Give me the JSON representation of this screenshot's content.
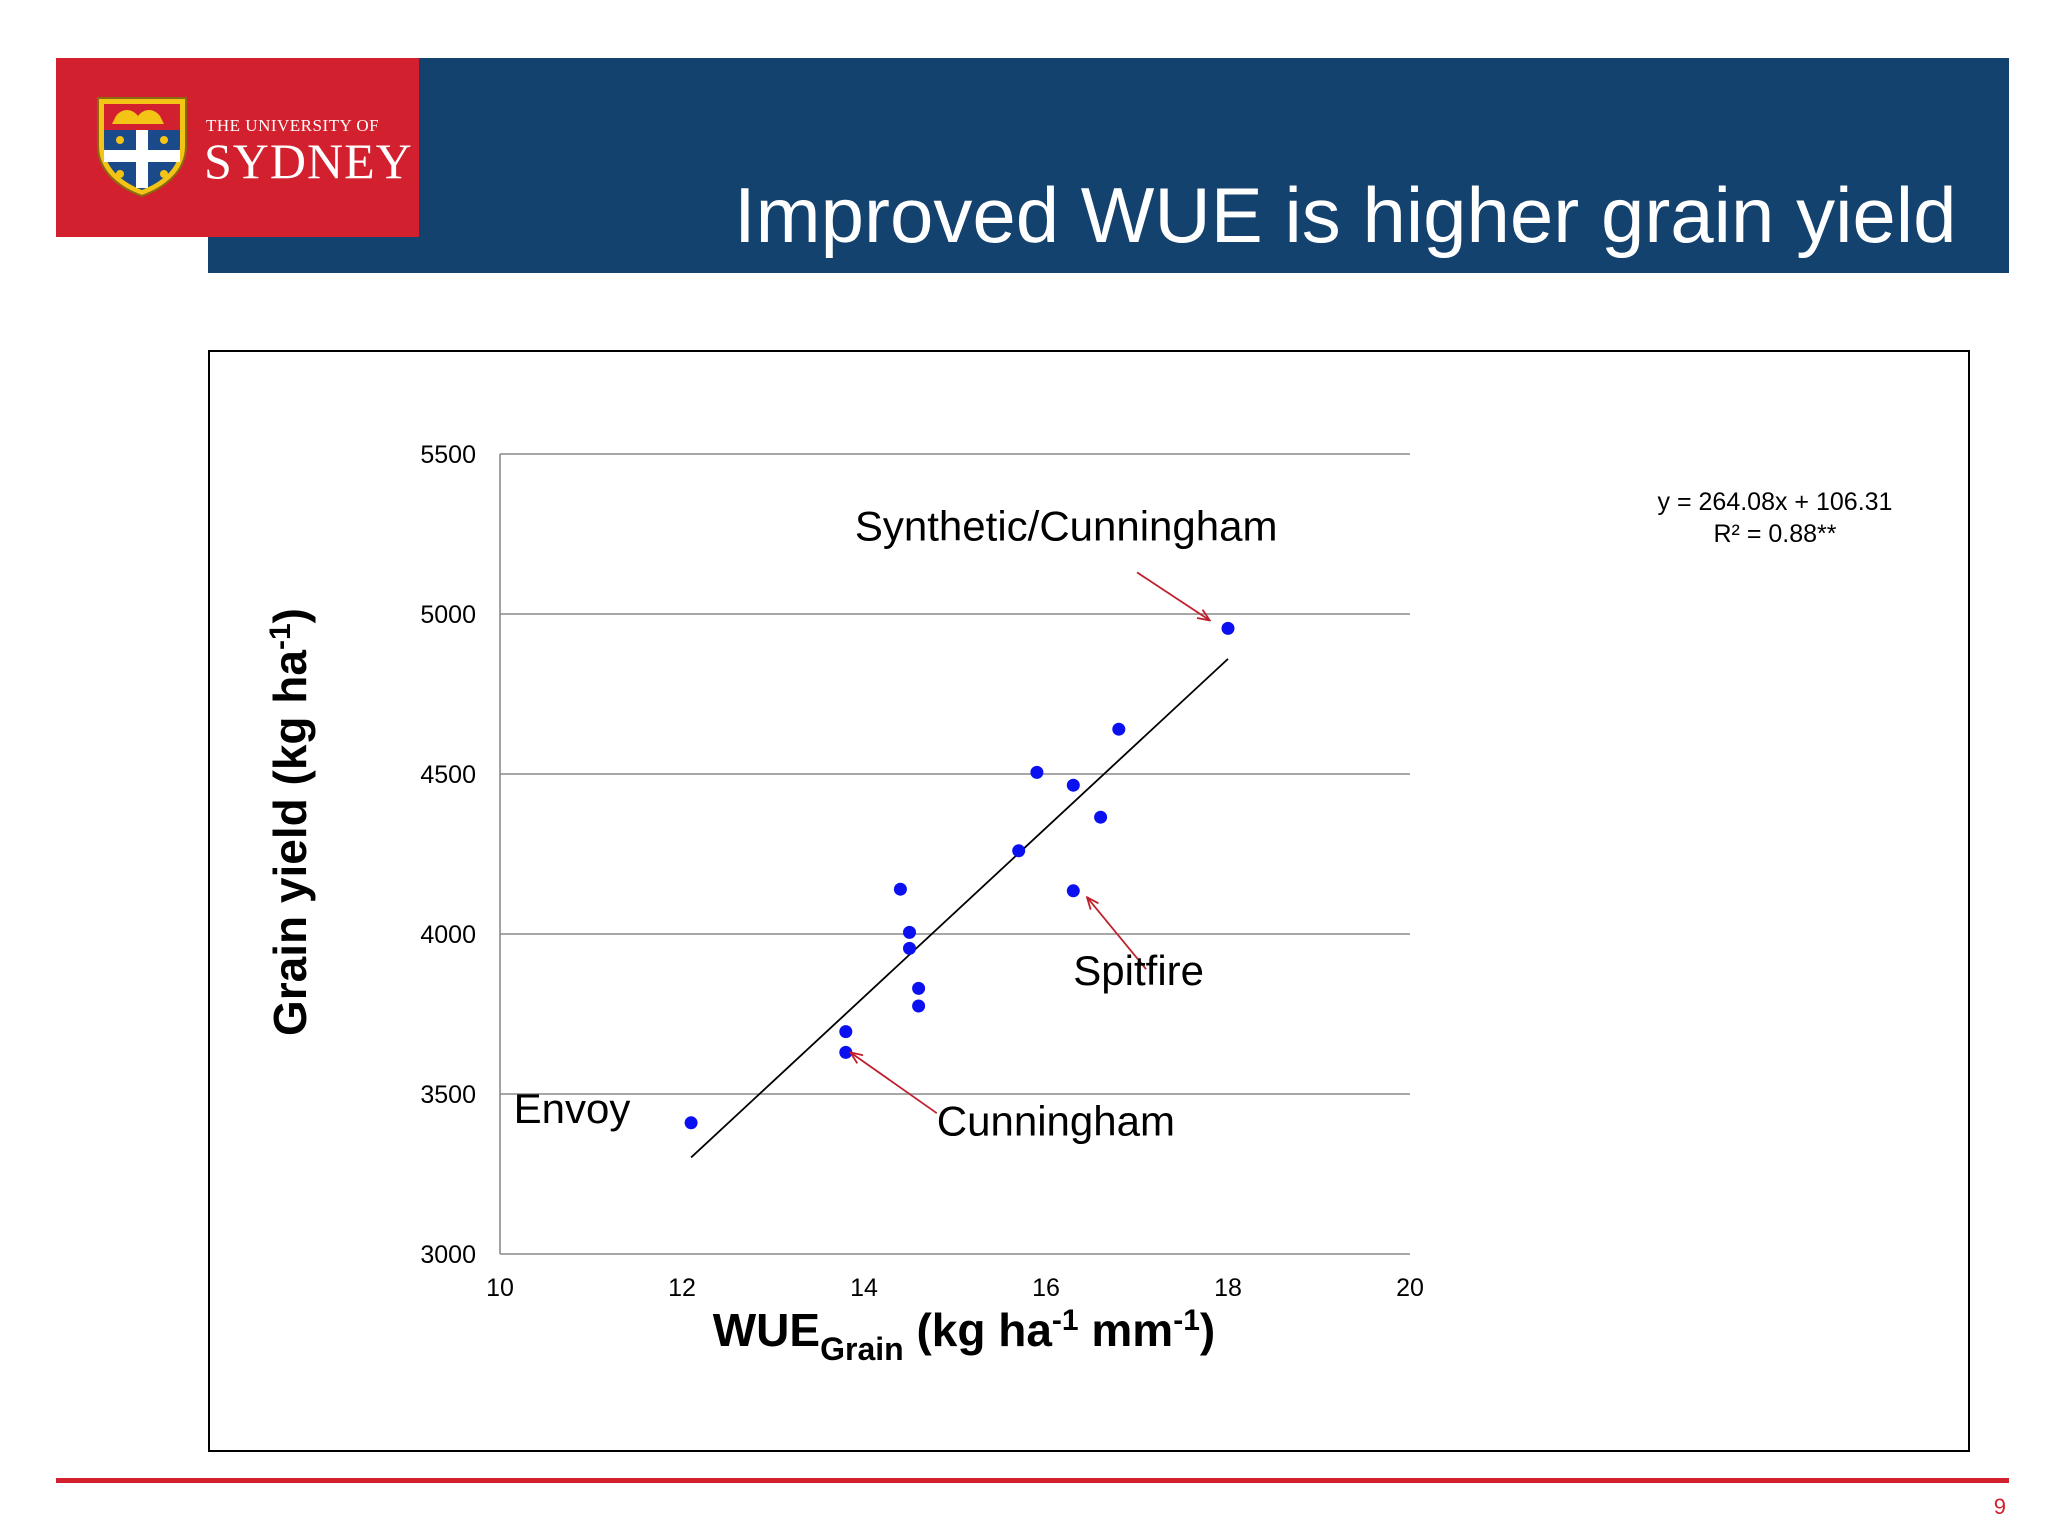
{
  "header": {
    "logo_small": "THE UNIVERSITY OF",
    "logo_big": "SYDNEY",
    "title": "Improved WUE is higher grain yield"
  },
  "chart_data": {
    "type": "scatter",
    "xlabel_main": "WUE",
    "xlabel_sub": "Grain",
    "xlabel_rest": " (kg ha",
    "xlabel_sup1": "-1",
    "xlabel_mid": " mm",
    "xlabel_sup2": "-1",
    "xlabel_end": ")",
    "ylabel_main": "Grain yield (kg ha",
    "ylabel_sup": "-1",
    "ylabel_end": ")",
    "xlim": [
      10,
      20
    ],
    "ylim": [
      3000,
      5500
    ],
    "x_ticks": [
      "10",
      "12",
      "14",
      "16",
      "18",
      "20"
    ],
    "y_ticks": [
      "3000",
      "3500",
      "4000",
      "4500",
      "5000",
      "5500"
    ],
    "grid": "horizontal",
    "point_color": "#0a10f0",
    "points": [
      {
        "x": 12.1,
        "y": 3410
      },
      {
        "x": 13.8,
        "y": 3630
      },
      {
        "x": 13.8,
        "y": 3695
      },
      {
        "x": 14.4,
        "y": 4140
      },
      {
        "x": 14.5,
        "y": 4005
      },
      {
        "x": 14.5,
        "y": 3955
      },
      {
        "x": 14.6,
        "y": 3830
      },
      {
        "x": 14.6,
        "y": 3775
      },
      {
        "x": 15.7,
        "y": 4260
      },
      {
        "x": 15.9,
        "y": 4505
      },
      {
        "x": 16.3,
        "y": 4465
      },
      {
        "x": 16.3,
        "y": 4135
      },
      {
        "x": 16.6,
        "y": 4365
      },
      {
        "x": 16.8,
        "y": 4640
      },
      {
        "x": 18.0,
        "y": 4955
      }
    ],
    "trendline": {
      "slope": 264.08,
      "intercept": 106.31,
      "x_range": [
        12.1,
        18.0
      ],
      "equation": "y = 264.08x + 106.31",
      "r2": "R² = 0.88**"
    },
    "annotations": [
      {
        "text": "Synthetic/Cunningham",
        "x": 13.9,
        "y": 5230
      },
      {
        "text": "Spitfire",
        "x": 16.3,
        "y": 3840
      },
      {
        "text": "Cunningham",
        "x": 14.8,
        "y": 3370
      },
      {
        "text": "Envoy",
        "x": 10.15,
        "y": 3410
      }
    ],
    "arrows": [
      {
        "from_x": 17.0,
        "from_y": 5130,
        "to_x": 17.8,
        "to_y": 4980
      },
      {
        "from_x": 17.1,
        "from_y": 3890,
        "to_x": 16.45,
        "to_y": 4115
      },
      {
        "from_x": 14.8,
        "from_y": 3440,
        "to_x": 13.85,
        "to_y": 3630
      }
    ]
  },
  "footer": {
    "page_number": "9"
  }
}
